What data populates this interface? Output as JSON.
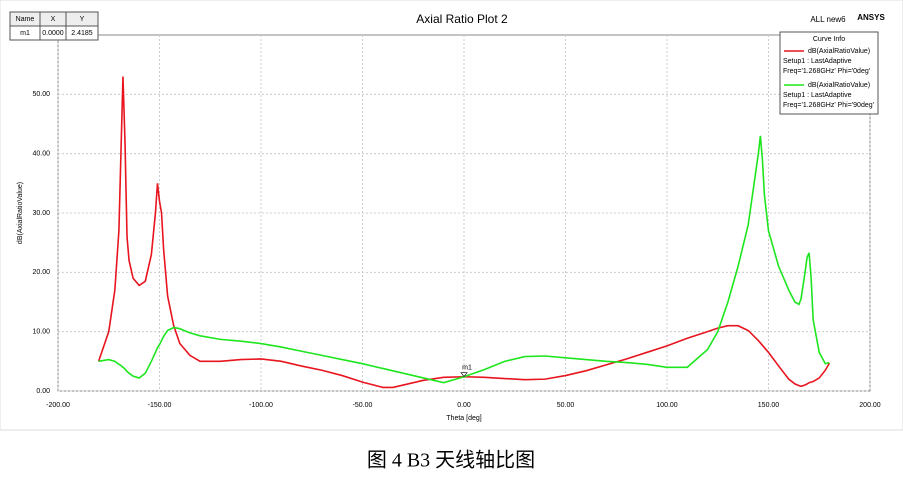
{
  "chart_data": {
    "type": "line",
    "title": "Axial Ratio Plot 2",
    "corner_left": "ALL new6",
    "corner_right": "ANSYS",
    "x_label": "Theta [deg]",
    "y_label": "dB(AxialRatioValue)",
    "legend_title": "Curve Info",
    "legend": "top-right",
    "grid": true,
    "xlim": [
      -200,
      200
    ],
    "ylim": [
      0,
      60
    ],
    "xticks": [
      {
        "value": -200,
        "label": "-200.00"
      },
      {
        "value": -150,
        "label": "-150.00"
      },
      {
        "value": -100,
        "label": "-100.00"
      },
      {
        "value": -50,
        "label": "-50.00"
      },
      {
        "value": 0,
        "label": "0.00"
      },
      {
        "value": 50,
        "label": "50.00"
      },
      {
        "value": 100,
        "label": "100.00"
      },
      {
        "value": 150,
        "label": "150.00"
      },
      {
        "value": 200,
        "label": "200.00"
      }
    ],
    "yticks": [
      {
        "value": 0,
        "label": "0.00"
      },
      {
        "value": 10,
        "label": "10.00"
      },
      {
        "value": 20,
        "label": "20.00"
      },
      {
        "value": 30,
        "label": "30.00"
      },
      {
        "value": 40,
        "label": "40.00"
      },
      {
        "value": 50,
        "label": "50.00"
      }
    ],
    "x": [
      -180,
      -175,
      -172,
      -170,
      -169,
      -168,
      -167,
      -166,
      -165,
      -163,
      -160,
      -157,
      -154,
      -152,
      -151,
      -150,
      -149,
      -148,
      -146,
      -143,
      -140,
      -135,
      -130,
      -120,
      -110,
      -100,
      -90,
      -80,
      -70,
      -60,
      -50,
      -40,
      -35,
      -30,
      -20,
      -10,
      0,
      10,
      20,
      30,
      40,
      50,
      60,
      70,
      80,
      90,
      100,
      110,
      120,
      125,
      130,
      135,
      140,
      145,
      146,
      147,
      148,
      150,
      155,
      160,
      163,
      165,
      166,
      168,
      169,
      170,
      171,
      172,
      175,
      178,
      180
    ],
    "series": [
      {
        "name": "dB(AxialRatioValue)",
        "info": [
          "Setup1 : LastAdaptive",
          "Freq='1.268GHz' Phi='0deg'"
        ],
        "color": "#e8141e",
        "values": [
          5,
          10,
          17,
          27,
          40,
          53,
          42,
          26,
          22,
          19,
          17.8,
          18.5,
          23,
          30,
          35,
          32,
          30,
          24,
          16,
          11,
          8,
          6,
          5,
          5,
          5.3,
          5.4,
          5,
          4.2,
          3.5,
          2.6,
          1.5,
          0.6,
          0.6,
          1,
          1.8,
          2.3,
          2.4,
          2.3,
          2.1,
          1.9,
          2,
          2.6,
          3.4,
          4.4,
          5.4,
          6.5,
          7.6,
          8.9,
          10,
          10.6,
          11,
          11,
          10.2,
          8.5,
          8.1,
          7.7,
          7.3,
          6.5,
          4.2,
          2,
          1.2,
          0.9,
          0.8,
          1,
          1.2,
          1.4,
          1.5,
          1.6,
          2.2,
          3.5,
          4.7
        ]
      },
      {
        "name": "dB(AxialRatioValue)",
        "info": [
          "Setup1 : LastAdaptive",
          "Freq='1.268GHz' Phi='90deg'"
        ],
        "color": "#1ee61e",
        "values": [
          5,
          5.3,
          5,
          4.5,
          4.3,
          4,
          3.7,
          3.3,
          3,
          2.5,
          2.2,
          3,
          5,
          6.5,
          7.3,
          7.8,
          8.5,
          9.2,
          10.2,
          10.7,
          10.5,
          9.8,
          9.3,
          8.7,
          8.4,
          8,
          7.4,
          6.7,
          6,
          5.3,
          4.6,
          3.8,
          3.4,
          3,
          2.2,
          1.4,
          2.4,
          3.6,
          5,
          5.8,
          5.9,
          5.6,
          5.3,
          5,
          4.8,
          4.5,
          4,
          4,
          7,
          10,
          15,
          21,
          28,
          40,
          43,
          39,
          33,
          27,
          21,
          17,
          15,
          14.6,
          15.5,
          20,
          22.5,
          23.3,
          19,
          12,
          6.5,
          4.6,
          4.8
        ]
      }
    ],
    "marker_table": {
      "columns": [
        "Name",
        "X",
        "Y"
      ]
    },
    "marker": {
      "name": "m1",
      "x": {
        "value": 0,
        "label": "0.0000"
      },
      "y": 2.4185
    }
  },
  "caption": "图 4 B3 天线轴比图"
}
